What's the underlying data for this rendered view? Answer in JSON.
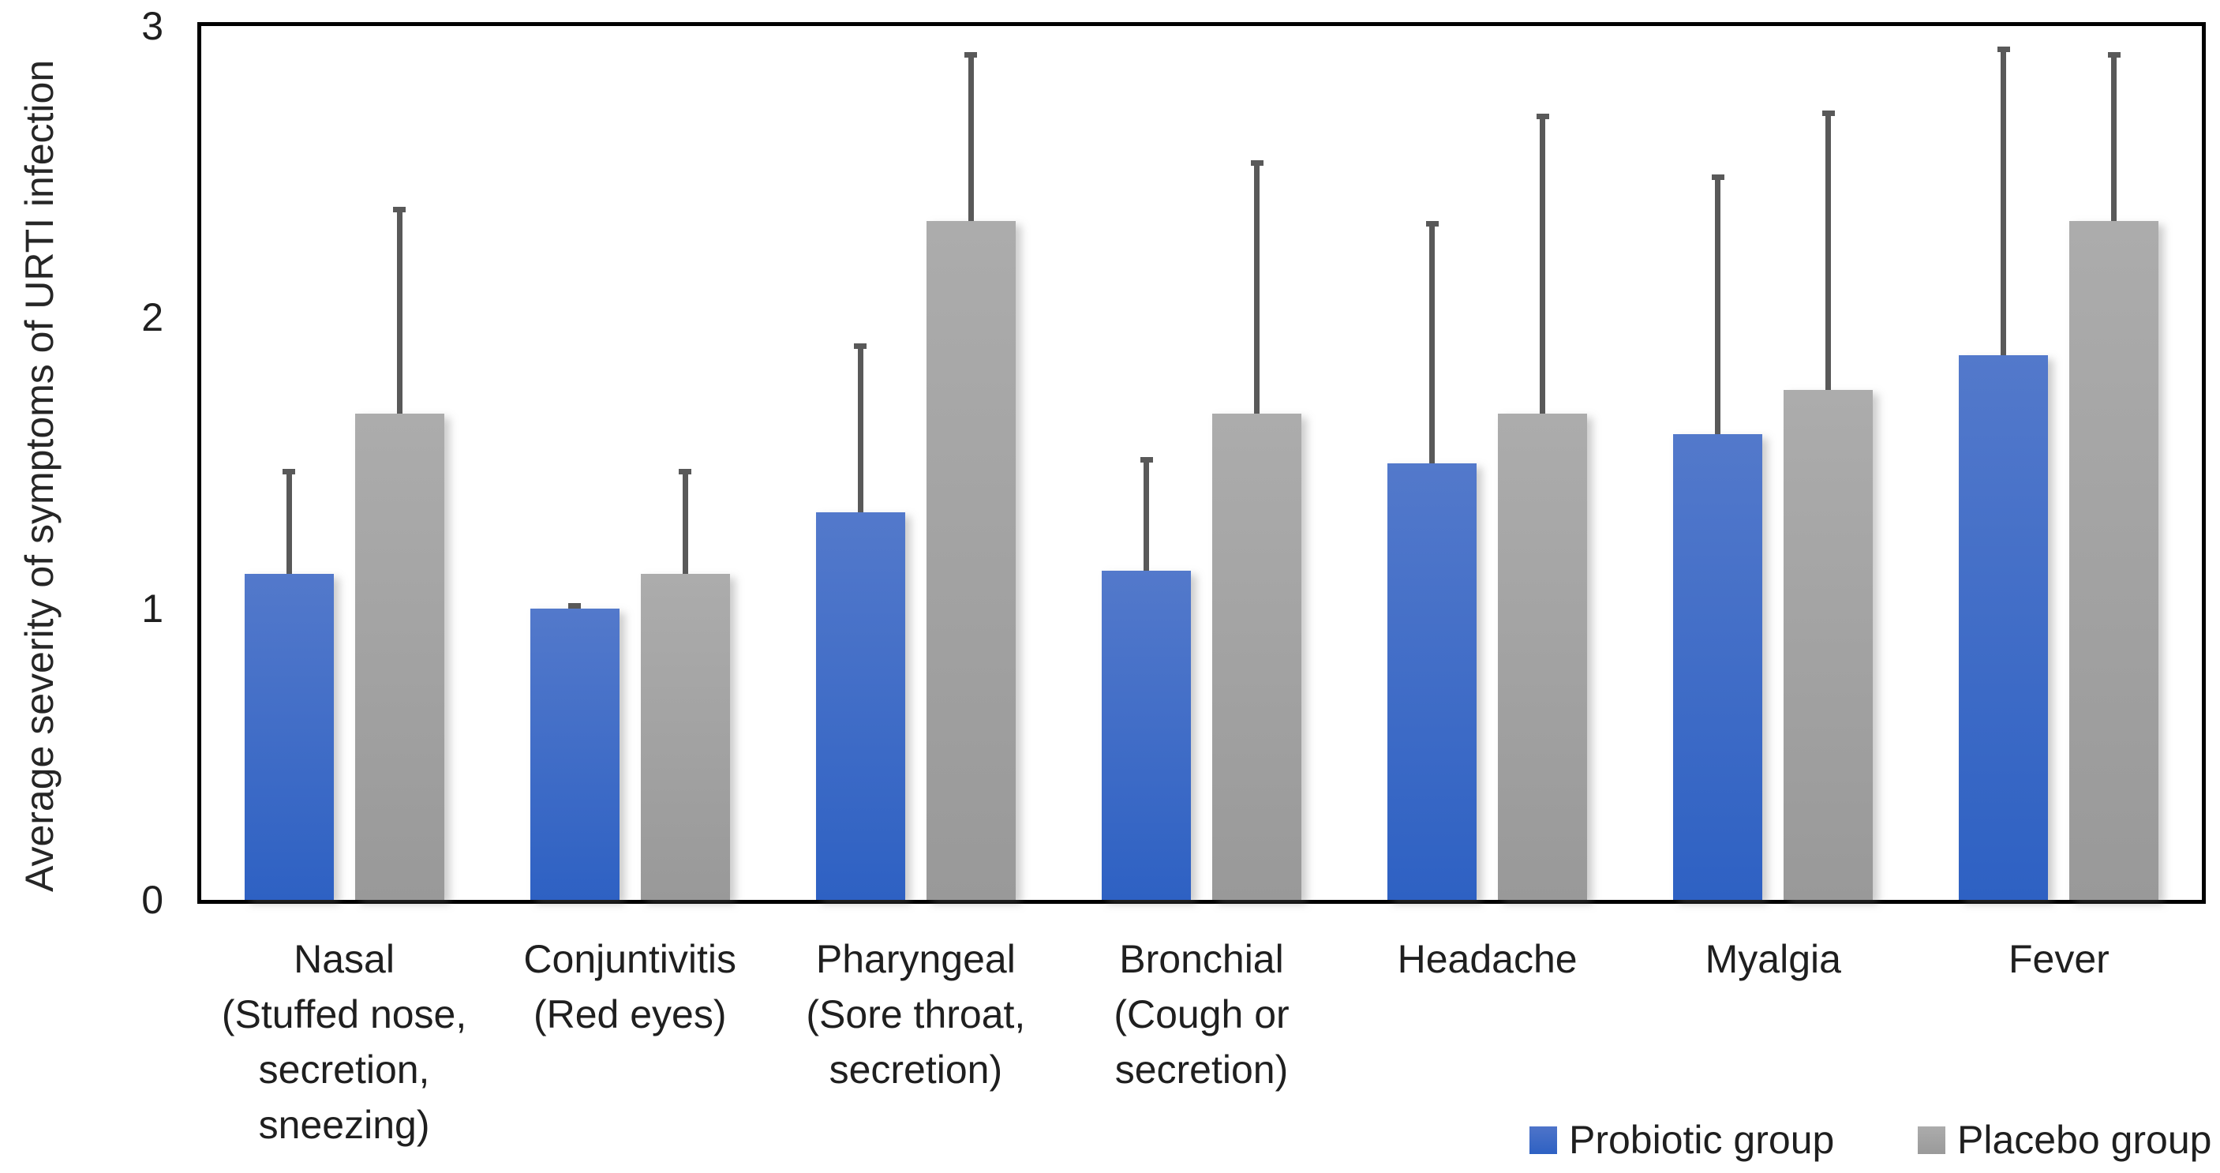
{
  "chart_data": {
    "type": "bar",
    "title": "",
    "xlabel": "",
    "ylabel": "Average severity of symptoms of URTI infection",
    "ylim": [
      0,
      3
    ],
    "yticks": [
      "0",
      "1",
      "2",
      "3"
    ],
    "grid": false,
    "plot_border": true,
    "legend_position": "bottom-right",
    "categories": [
      "Nasal (Stuffed nose, secretion, sneezing)",
      "Conjuntivitis (Red eyes)",
      "Pharyngeal (Sore throat, secretion)",
      "Bronchial (Cough or secretion)",
      "Headache",
      "Myalgia",
      "Fever"
    ],
    "category_label_lines": [
      [
        "Nasal",
        "(Stuffed nose,",
        "secretion,",
        "sneezing)"
      ],
      [
        "Conjuntivitis",
        "(Red eyes)"
      ],
      [
        "Pharyngeal",
        "(Sore throat,",
        "secretion)"
      ],
      [
        "Bronchial",
        "(Cough or",
        "secretion)"
      ],
      [
        "Headache"
      ],
      [
        "Myalgia"
      ],
      [
        "Fever"
      ]
    ],
    "series": [
      {
        "name": "Probiotic group",
        "color_top": "#5379CB",
        "color_bottom": "#2E61C3",
        "values": [
          1.12,
          1.0,
          1.33,
          1.13,
          1.5,
          1.6,
          1.87
        ],
        "error_plus": [
          0.36,
          0.02,
          0.58,
          0.39,
          0.83,
          0.89,
          1.06
        ]
      },
      {
        "name": "Placebo group",
        "color_top": "#ACACAC",
        "color_bottom": "#999999",
        "values": [
          1.67,
          1.12,
          2.33,
          1.67,
          1.67,
          1.75,
          2.33
        ],
        "error_plus": [
          0.71,
          0.36,
          0.58,
          0.87,
          1.03,
          0.96,
          0.58
        ]
      }
    ],
    "error_bar_color": "#595959",
    "axis_color": "#000000"
  }
}
